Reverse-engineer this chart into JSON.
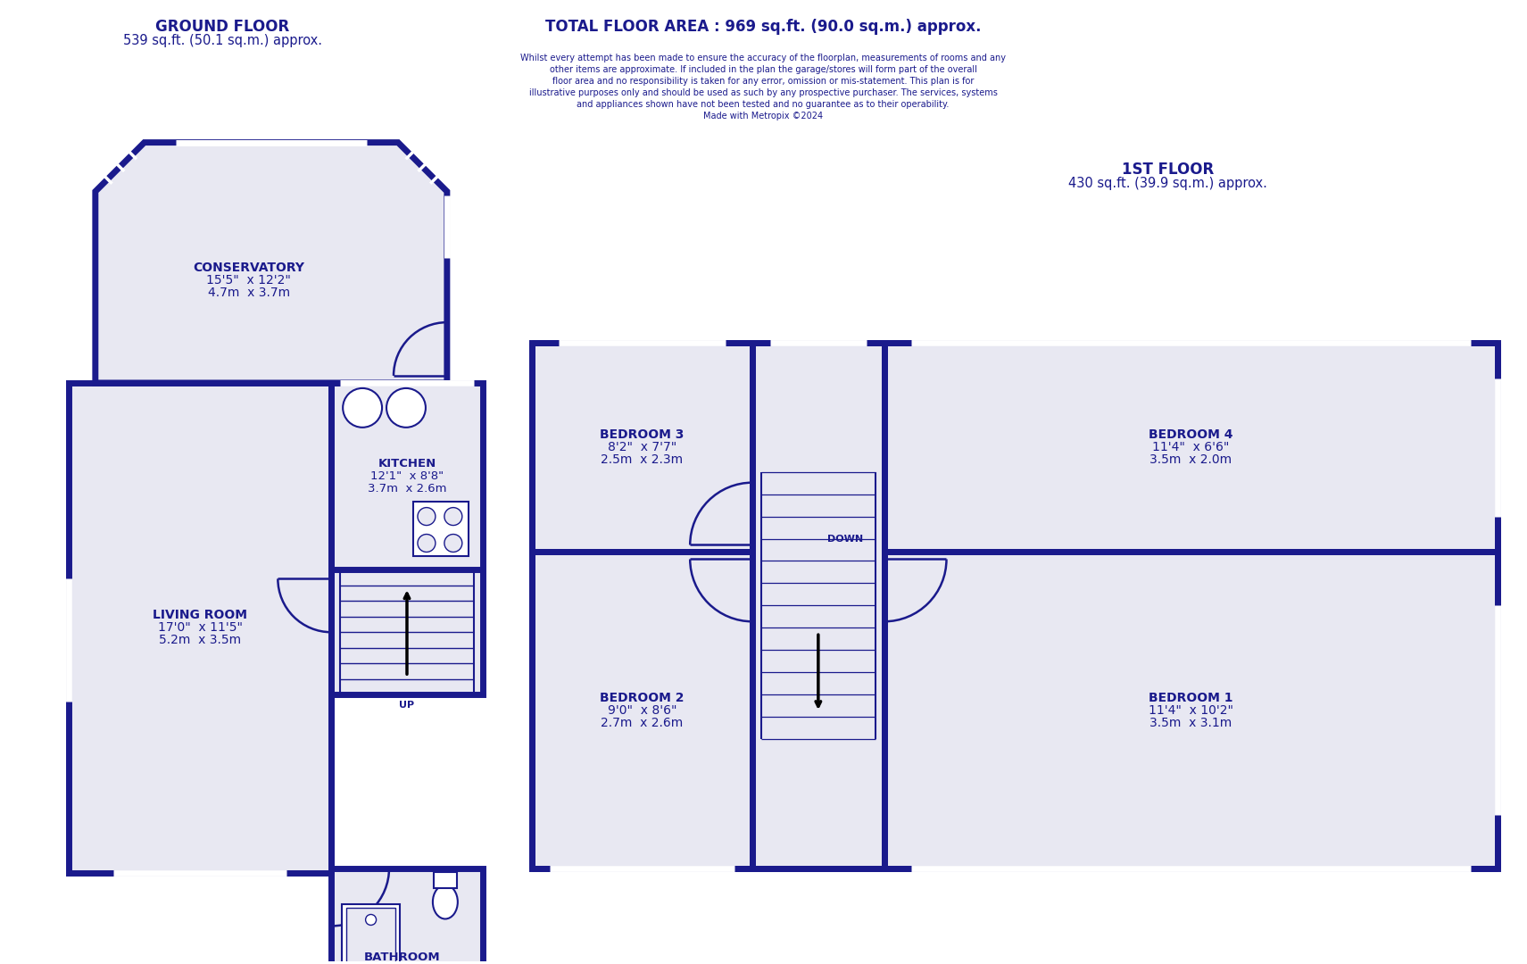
{
  "bg_color": "#ffffff",
  "wall_color": "#1a1a8c",
  "room_fill": "#e8e8f2",
  "wall_lw": 5.0,
  "title_color": "#1a1a8c",
  "ground_floor_title": "GROUND FLOOR",
  "ground_floor_subtitle": "539 sq.ft. (50.1 sq.m.) approx.",
  "first_floor_title": "1ST FLOOR",
  "first_floor_subtitle": "430 sq.ft. (39.9 sq.m.) approx.",
  "total_area": "TOTAL FLOOR AREA : 969 sq.ft. (90.0 sq.m.) approx.",
  "disclaimer_line1": "Whilst every attempt has been made to ensure the accuracy of the floorplan, measurements of rooms and any",
  "disclaimer_line2": "other items are approximate. If included in the plan the garage/stores will form part of the overall",
  "disclaimer_line3": "floor area and no responsibility is taken for any error, omission or mis-statement. This plan is for",
  "disclaimer_line4": "illustrative purposes only and should be used as such by any prospective purchaser. The services, systems",
  "disclaimer_line5": "and appliances shown have not been tested and no guarantee as to their operability.",
  "disclaimer_line6": "Made with Metropix ©2024"
}
